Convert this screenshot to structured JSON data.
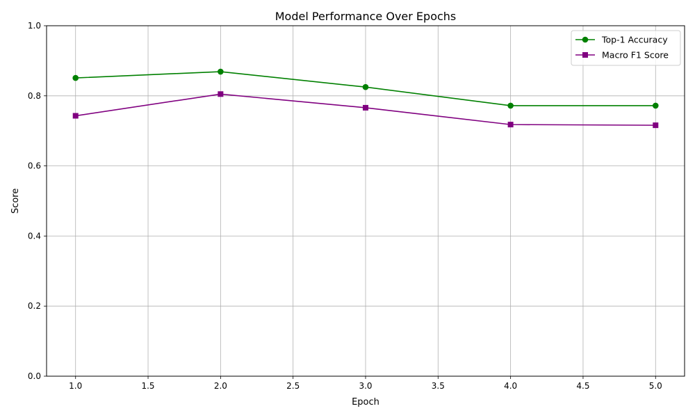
{
  "chart_data": {
    "type": "line",
    "title": "Model Performance Over Epochs",
    "xlabel": "Epoch",
    "ylabel": "Score",
    "xlim": [
      0.8,
      5.2
    ],
    "ylim": [
      0.0,
      1.0
    ],
    "x_ticks": [
      1.0,
      1.5,
      2.0,
      2.5,
      3.0,
      3.5,
      4.0,
      4.5,
      5.0
    ],
    "x_tick_labels": [
      "1.0",
      "1.5",
      "2.0",
      "2.5",
      "3.0",
      "3.5",
      "4.0",
      "4.5",
      "5.0"
    ],
    "y_ticks": [
      0.0,
      0.2,
      0.4,
      0.6,
      0.8,
      1.0
    ],
    "y_tick_labels": [
      "0.0",
      "0.2",
      "0.4",
      "0.6",
      "0.8",
      "1.0"
    ],
    "grid": true,
    "legend_position": "top-right",
    "x": [
      1,
      2,
      3,
      4,
      5
    ],
    "series": [
      {
        "name": "Top-1 Accuracy",
        "values": [
          0.851,
          0.869,
          0.825,
          0.772,
          0.772
        ],
        "color": "#008000",
        "marker": "circle"
      },
      {
        "name": "Macro F1 Score",
        "values": [
          0.743,
          0.805,
          0.766,
          0.718,
          0.716
        ],
        "color": "#800080",
        "marker": "square"
      }
    ]
  }
}
